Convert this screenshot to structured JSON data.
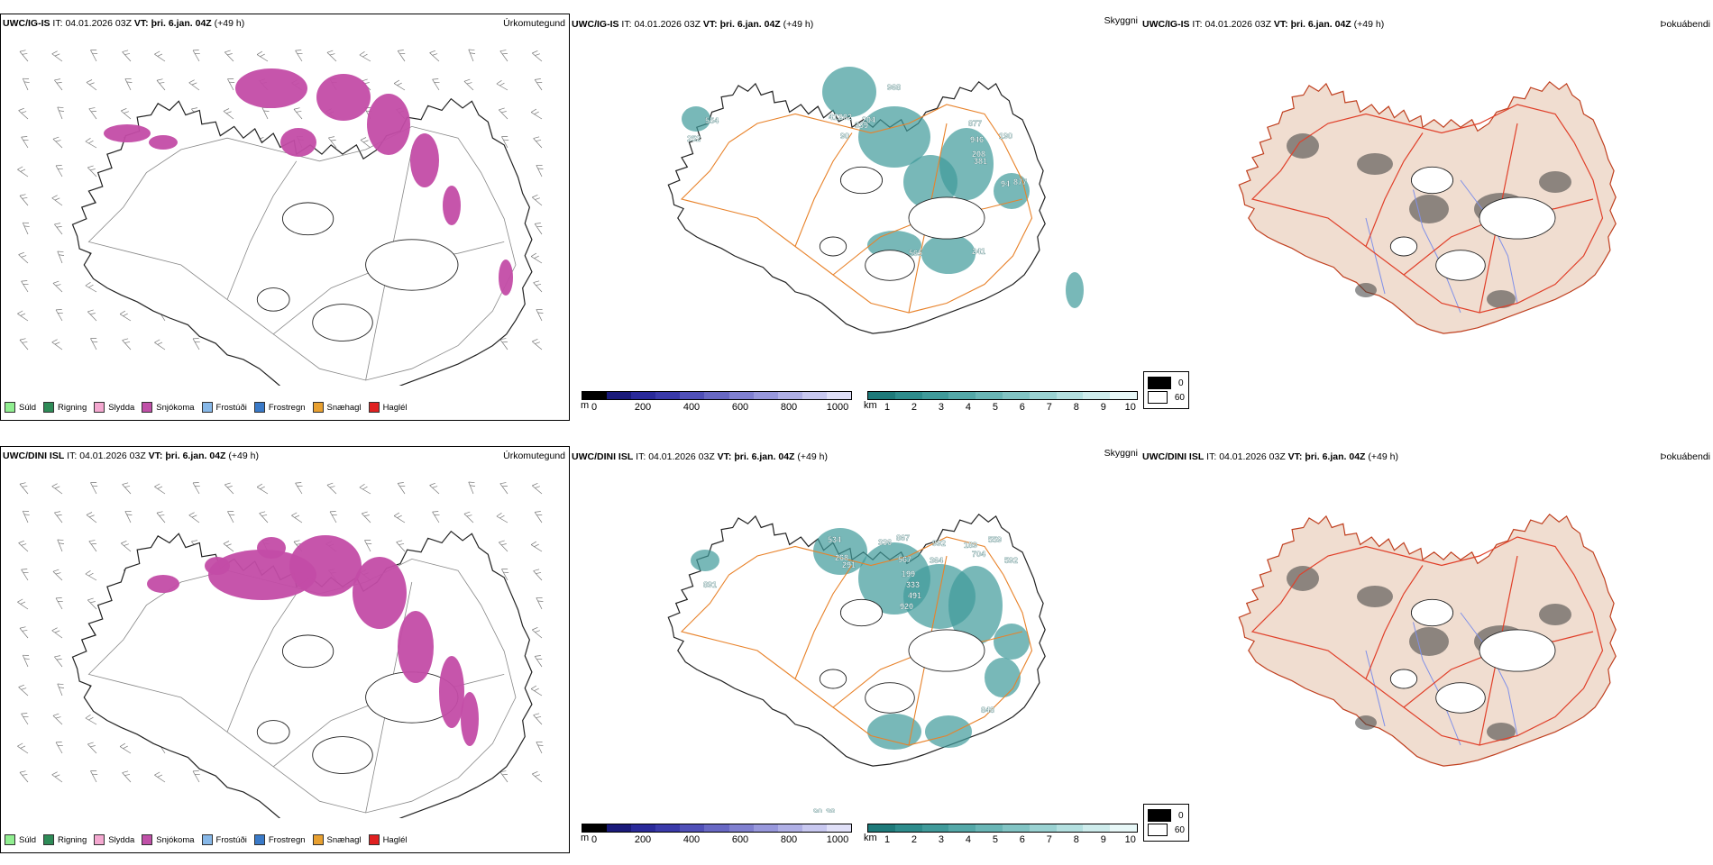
{
  "rows": [
    {
      "model": "UWC/IG-IS",
      "it_label": "IT:",
      "it_value": "04.01.2026 03Z",
      "vt_label": "VT:",
      "vt_value": "þri. 6.jan. 04Z",
      "lead": "(+49 h)",
      "panel_titles": [
        "Úrkomutegund",
        "Skyggni",
        "Þokuábendi"
      ],
      "labels": [
        "554",
        "252",
        "412",
        "202",
        "339",
        "90",
        "204",
        "968",
        "877",
        "946",
        "208",
        "381",
        "190",
        "94",
        "877",
        "565",
        "241"
      ]
    },
    {
      "model": "UWC/DINI ISL",
      "it_label": "IT:",
      "it_value": "04.01.2026 03Z",
      "vt_label": "VT:",
      "vt_value": "þri. 6.jan. 04Z",
      "lead": "(+49 h)",
      "panel_titles": [
        "Úrkomutegund",
        "Skyggni",
        "Þokuábendi"
      ],
      "labels": [
        "534",
        "268",
        "291",
        "336",
        "867",
        "992",
        "189",
        "559",
        "567",
        "364",
        "704",
        "592",
        "199",
        "333",
        "491",
        "920",
        "891",
        "848",
        "90",
        "38"
      ]
    }
  ],
  "precip_legend": [
    {
      "label": "Súld",
      "color": "#90ee90"
    },
    {
      "label": "Rigning",
      "color": "#2e8b57"
    },
    {
      "label": "Slydda",
      "color": "#f4a8d0"
    },
    {
      "label": "Snjókoma",
      "color": "#c050a8"
    },
    {
      "label": "Frostúði",
      "color": "#87b8e8"
    },
    {
      "label": "Frostregn",
      "color": "#3a7ac8"
    },
    {
      "label": "Snæhagl",
      "color": "#e8a030"
    },
    {
      "label": "Haglél",
      "color": "#e02020"
    }
  ],
  "height_bar": {
    "unit": "m",
    "ticks": [
      "0",
      "200",
      "400",
      "600",
      "800",
      "1000"
    ],
    "colors": [
      "#000000",
      "#1a1a7a",
      "#2a2a9a",
      "#3a3aaa",
      "#5050b8",
      "#6868c4",
      "#8080d0",
      "#9898dc",
      "#b0b0e6",
      "#c8c8f0",
      "#e0e0f8"
    ]
  },
  "vis_bar": {
    "unit": "km",
    "ticks": [
      "1",
      "2",
      "3",
      "4",
      "5",
      "6",
      "7",
      "8",
      "9",
      "10"
    ],
    "colors": [
      "#1e7a7a",
      "#2e8c8c",
      "#409a9a",
      "#54a8a8",
      "#6ab6b6",
      "#82c4c4",
      "#9ad2d2",
      "#b4e0e0",
      "#ceecec",
      "#e8f8f8"
    ]
  },
  "fog_legend": [
    {
      "value": "0",
      "color": "#000000"
    },
    {
      "value": "60",
      "color": "#ffffff"
    }
  ],
  "colors": {
    "snow": "#c34ca6",
    "vis": "#3f9a9a",
    "road": "#e8822a",
    "fog_land": "#f0ddd0",
    "fog_road": "#e0402a",
    "river": "#8090e8"
  }
}
